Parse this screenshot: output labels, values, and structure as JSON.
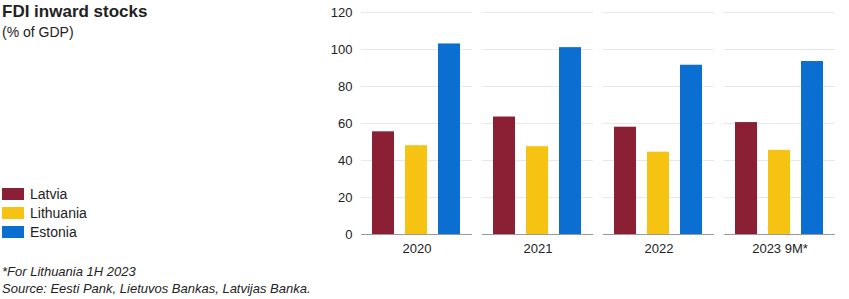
{
  "chart_data": {
    "type": "bar",
    "title": "FDI inward stocks",
    "subtitle": "(% of GDP)",
    "categories": [
      "2020",
      "2021",
      "2022",
      "2023 9M*"
    ],
    "series": [
      {
        "name": "Latvia",
        "color": "#8b2035",
        "values": [
          55.5,
          63.5,
          58,
          60.5
        ]
      },
      {
        "name": "Lithuania",
        "color": "#f7c313",
        "values": [
          48,
          47.5,
          44.5,
          45.5
        ]
      },
      {
        "name": "Estonia",
        "color": "#0a6fd1",
        "values": [
          103,
          101,
          91.5,
          93.5
        ]
      }
    ],
    "ylim": [
      0,
      120
    ],
    "yticks": [
      0,
      20,
      40,
      60,
      80,
      100,
      120
    ],
    "grid": true,
    "legend": "left",
    "footnote": "*For Lithuania 1H 2023",
    "source": "Source: Eesti Pank, Lietuvos Bankas, Latvijas Banka."
  }
}
